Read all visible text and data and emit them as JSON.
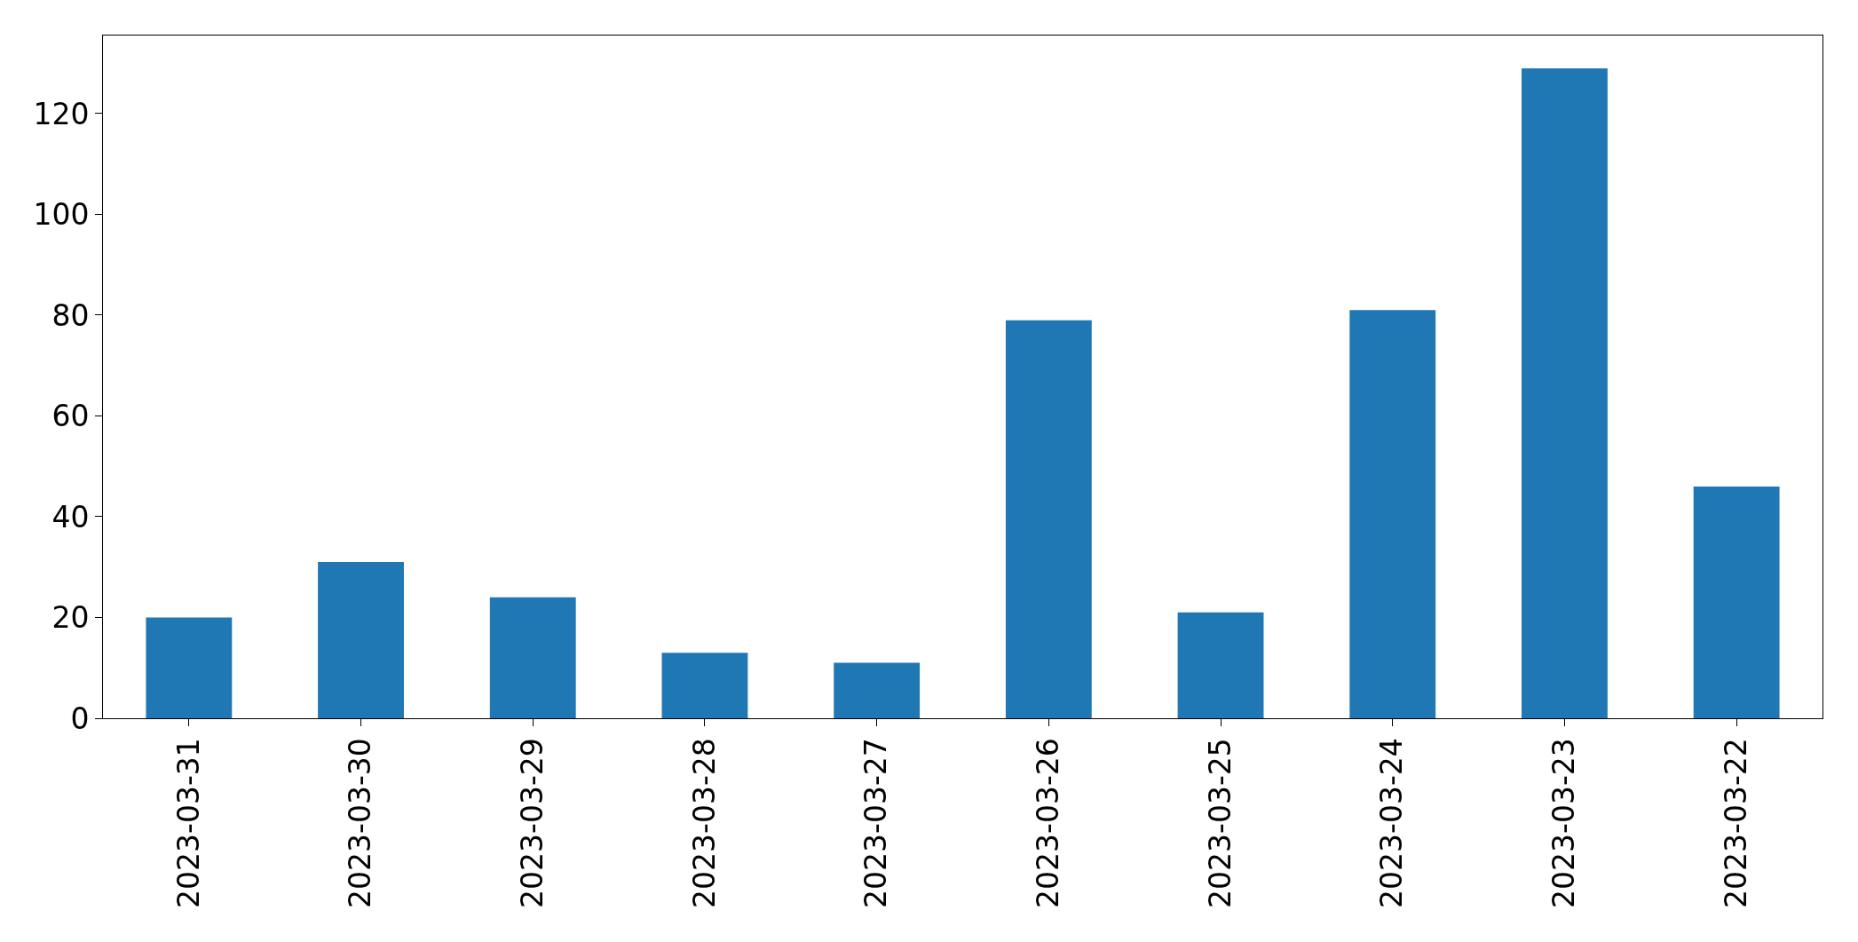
{
  "chart_data": {
    "type": "bar",
    "categories": [
      "2023-03-31",
      "2023-03-30",
      "2023-03-29",
      "2023-03-28",
      "2023-03-27",
      "2023-03-26",
      "2023-03-25",
      "2023-03-24",
      "2023-03-23",
      "2023-03-22"
    ],
    "values": [
      20,
      31,
      24,
      13,
      11,
      79,
      21,
      81,
      129,
      46
    ],
    "color": "#1f77b4",
    "ylim": [
      0,
      135.5
    ],
    "yticks": [
      0,
      20,
      40,
      60,
      80,
      100,
      120
    ]
  }
}
